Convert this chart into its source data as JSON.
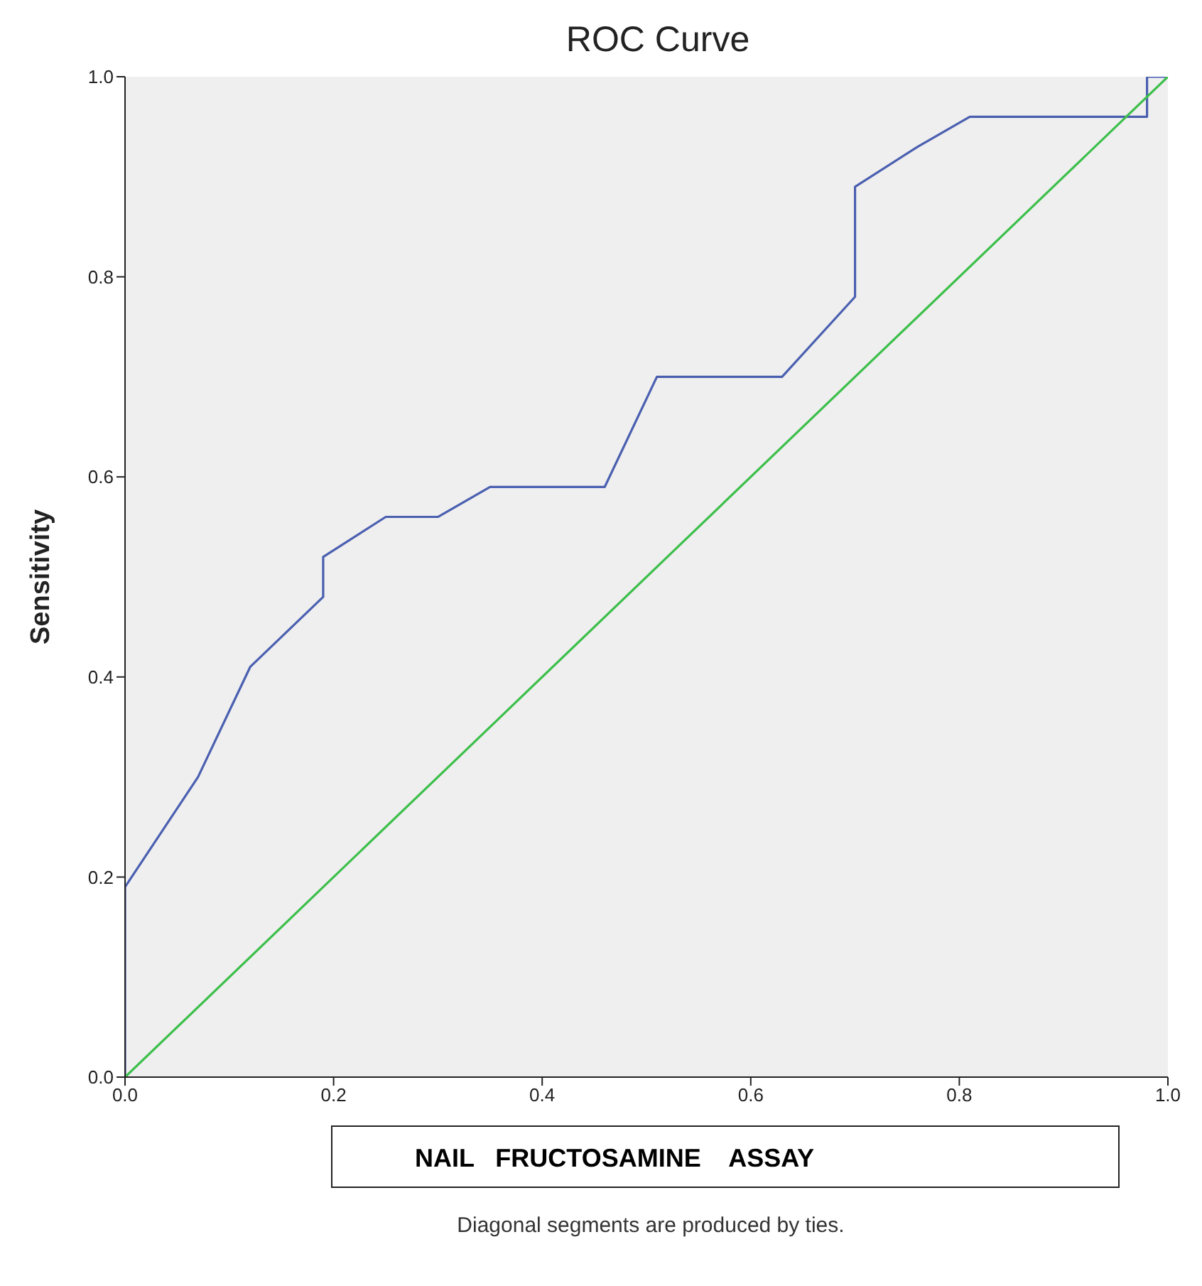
{
  "chart_data": {
    "type": "line",
    "title": "ROC Curve",
    "xlabel": "NAIL   FRUCTOSAMINE    ASSAY",
    "ylabel": "Sensitivity",
    "annotations": [
      "Diagonal segments are produced by ties."
    ],
    "series": [
      {
        "color": "#4a5fb0",
        "x": [
          0,
          0,
          0.07,
          0.12,
          0.19,
          0.19,
          0.25,
          0.3,
          0.35,
          0.46,
          0.51,
          0.63,
          0.7,
          0.7,
          0.76,
          0.81,
          0.98,
          0.98,
          1
        ],
        "values": [
          0,
          0.19,
          0.3,
          0.41,
          0.48,
          0.52,
          0.56,
          0.56,
          0.59,
          0.59,
          0.7,
          0.7,
          0.78,
          0.89,
          0.93,
          0.96,
          0.96,
          1,
          1
        ]
      },
      {
        "color": "#3cbf4a",
        "x": [
          0,
          1
        ],
        "values": [
          0,
          1
        ]
      }
    ],
    "xlim": [
      0,
      1
    ],
    "ylim": [
      0,
      1
    ],
    "xticks": [
      {
        "value": 0,
        "label": "0.0"
      },
      {
        "value": 0.2,
        "label": "0.2"
      },
      {
        "value": 0.4,
        "label": "0.4"
      },
      {
        "value": 0.6,
        "label": "0.6"
      },
      {
        "value": 0.8,
        "label": "0.8"
      },
      {
        "value": 1,
        "label": "1.0"
      }
    ],
    "yticks": [
      {
        "value": 0,
        "label": "0.0"
      },
      {
        "value": 0.2,
        "label": "0.2"
      },
      {
        "value": 0.4,
        "label": "0.4"
      },
      {
        "value": 0.6,
        "label": "0.6"
      },
      {
        "value": 0.8,
        "label": "0.8"
      },
      {
        "value": 1,
        "label": "1.0"
      }
    ],
    "grid": false,
    "marker": "none",
    "line_style": "solid"
  }
}
